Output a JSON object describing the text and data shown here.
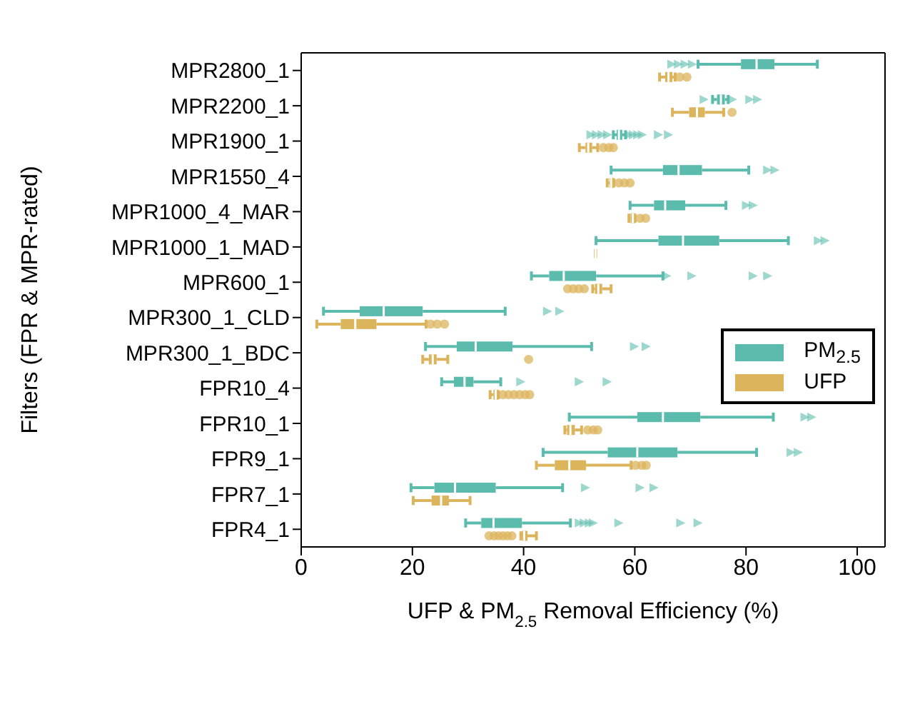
{
  "chart_data": {
    "type": "box",
    "orientation": "horizontal",
    "xlabel": "UFP & PM$_{2.5}$ Removal Efficiency (%)",
    "ylabel": "Filters (FPR & MPR-rated)",
    "categories": [
      "MPR2800_1",
      "MPR2200_1",
      "MPR1900_1",
      "MPR1550_4",
      "MPR1000_4_MAR",
      "MPR1000_1_MAD",
      "MPR600_1",
      "MPR300_1_CLD",
      "MPR300_1_BDC",
      "FPR10_4",
      "FPR10_1",
      "FPR9_1",
      "FPR7_1",
      "FPR4_1"
    ],
    "xlim": [
      0,
      105
    ],
    "xticks": [
      0,
      20,
      40,
      60,
      80,
      100
    ],
    "legend": "right",
    "series": [
      {
        "name": "PM$_{2.5}$",
        "color": "#5bbcae",
        "marker": "triangle",
        "boxes": [
          {
            "low": 71.2,
            "q1": 78.9,
            "median": 81.7,
            "q3": 84.9,
            "high": 92.6,
            "outliers": [
              66.5,
              67.7,
              68.9,
              70.2
            ]
          },
          {
            "low": 73.8,
            "q1": 74.6,
            "median": 75.3,
            "q3": 76.0,
            "high": 76.6,
            "outliers": [
              72.3,
              77.4,
              80.5,
              81.9
            ]
          },
          {
            "low": 56.0,
            "q1": 56.6,
            "median": 57.0,
            "q3": 57.6,
            "high": 58.2,
            "outliers": [
              52.0,
              53.0,
              54.0,
              55.0,
              58.8,
              59.6,
              60.4,
              61.2,
              64.1,
              65.9
            ]
          },
          {
            "low": 55.6,
            "q1": 64.9,
            "median": 67.7,
            "q3": 71.9,
            "high": 80.3,
            "outliers": [
              83.7,
              85.0
            ]
          },
          {
            "low": 59.0,
            "q1": 63.3,
            "median": 65.3,
            "q3": 68.9,
            "high": 76.2,
            "outliers": [
              79.9,
              81.1
            ]
          },
          {
            "low": 52.9,
            "q1": 64.1,
            "median": 68.5,
            "q3": 75.0,
            "high": 87.4,
            "outliers": [
              92.8,
              94.0
            ]
          },
          {
            "low": 41.3,
            "q1": 44.5,
            "median": 47.1,
            "q3": 52.9,
            "high": 64.9,
            "outliers": [
              65.6,
              70.1,
              81.1,
              83.7
            ]
          },
          {
            "low": 4.0,
            "q1": 10.5,
            "median": 14.8,
            "q3": 21.8,
            "high": 36.6,
            "outliers": [
              44.2,
              46.4
            ]
          },
          {
            "low": 22.3,
            "q1": 27.9,
            "median": 31.3,
            "q3": 37.9,
            "high": 52.1,
            "outliers": [
              59.8,
              61.9
            ]
          },
          {
            "low": 25.2,
            "q1": 27.4,
            "median": 29.3,
            "q3": 30.9,
            "high": 35.8,
            "outliers": [
              39.4,
              49.9,
              54.9
            ]
          },
          {
            "low": 48.1,
            "q1": 60.3,
            "median": 64.9,
            "q3": 71.6,
            "high": 84.7,
            "outliers": [
              90.4,
              91.6
            ]
          },
          {
            "low": 43.4,
            "q1": 55.0,
            "median": 60.3,
            "q3": 67.5,
            "high": 81.7,
            "outliers": [
              87.9,
              89.2
            ]
          },
          {
            "low": 19.7,
            "q1": 23.9,
            "median": 27.6,
            "q3": 34.9,
            "high": 46.9,
            "outliers": [
              51.0,
              60.8,
              63.3
            ]
          },
          {
            "low": 29.5,
            "q1": 32.3,
            "median": 34.5,
            "q3": 39.6,
            "high": 48.3,
            "outliers": [
              49.9,
              50.8,
              51.7,
              52.4,
              57.0,
              68.1,
              71.2
            ]
          }
        ]
      },
      {
        "name": "UFP",
        "color": "#dcb45c",
        "marker": "circle",
        "boxes": [
          {
            "low": 64.3,
            "q1": 65.3,
            "median": 65.9,
            "q3": 66.6,
            "high": 67.1,
            "outliers": [
              67.9,
              69.2
            ]
          },
          {
            "low": 66.6,
            "q1": 69.6,
            "median": 71.0,
            "q3": 72.4,
            "high": 75.8,
            "outliers": [
              77.3
            ]
          },
          {
            "low": 49.9,
            "q1": 51.0,
            "median": 51.5,
            "q3": 52.2,
            "high": 53.2,
            "outliers": [
              54.2,
              55.2,
              56.0
            ]
          },
          {
            "low": 54.9,
            "q1": 55.3,
            "median": 55.6,
            "q3": 56.1,
            "high": 56.1,
            "outliers": [
              57.0,
              58.0,
              59.0
            ]
          },
          {
            "low": 58.8,
            "q1": 59.1,
            "median": 59.5,
            "q3": 59.9,
            "high": 59.9,
            "outliers": [
              60.8,
              61.8
            ]
          },
          {
            "low": 52.8,
            "q1": 52.8,
            "median": 52.8,
            "q3": 52.8,
            "high": 52.8
          },
          {
            "low": 52.3,
            "q1": 52.7,
            "median": 53.3,
            "q3": 54.0,
            "high": 55.6,
            "outliers": [
              47.8,
              48.8,
              49.8,
              50.8
            ]
          },
          {
            "low": 2.8,
            "q1": 7.1,
            "median": 9.7,
            "q3": 13.5,
            "high": 22.4,
            "outliers": [
              23.2,
              24.4,
              25.7
            ]
          },
          {
            "low": 21.8,
            "q1": 22.9,
            "median": 23.6,
            "q3": 24.3,
            "high": 26.3,
            "outliers": [
              40.8
            ]
          },
          {
            "low": 33.9,
            "q1": 34.5,
            "median": 34.9,
            "q3": 35.4,
            "high": 35.4,
            "outliers": [
              36.2,
              37.2,
              38.2,
              39.2,
              40.2,
              41.0
            ]
          },
          {
            "low": 47.3,
            "q1": 47.7,
            "median": 48.3,
            "q3": 49.1,
            "high": 50.3,
            "outliers": [
              51.4,
              52.4,
              53.2
            ]
          },
          {
            "low": 42.2,
            "q1": 45.5,
            "median": 48.1,
            "q3": 51.1,
            "high": 59.2,
            "outliers": [
              60.0,
              61.1,
              61.9
            ]
          },
          {
            "low": 20.1,
            "q1": 23.4,
            "median": 25.1,
            "q3": 26.5,
            "high": 30.3
          },
          {
            "low": 39.4,
            "q1": 39.6,
            "median": 40.0,
            "q3": 40.6,
            "high": 42.2,
            "outliers": [
              33.7,
              34.6,
              35.4,
              36.2,
              37.0,
              37.8
            ]
          }
        ]
      }
    ]
  }
}
